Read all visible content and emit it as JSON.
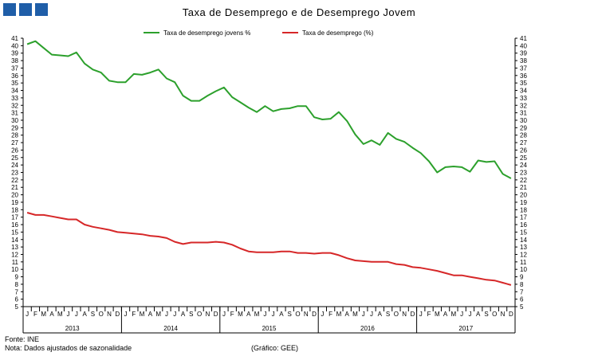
{
  "chart_data": {
    "type": "line",
    "title": "Taxa de Desemprego e de Desemprego Jovem",
    "xlabel": "",
    "ylabel": "",
    "ylim": [
      5,
      41
    ],
    "y_ticks": [
      5,
      6,
      7,
      8,
      9,
      10,
      11,
      12,
      13,
      14,
      15,
      16,
      17,
      18,
      19,
      20,
      21,
      22,
      23,
      24,
      25,
      26,
      27,
      28,
      29,
      30,
      31,
      32,
      33,
      34,
      35,
      36,
      37,
      38,
      39,
      40,
      41
    ],
    "month_labels": [
      "J",
      "F",
      "M",
      "A",
      "M",
      "J",
      "J",
      "A",
      "S",
      "O",
      "N",
      "D"
    ],
    "years": [
      "2013",
      "2014",
      "2015",
      "2016",
      "2017"
    ],
    "legend_position": "top-center",
    "series": [
      {
        "name": "Taxa de desemprego jovens %",
        "color": "#2ca02c",
        "values": [
          40.2,
          40.6,
          39.7,
          38.8,
          38.7,
          38.6,
          39.1,
          37.6,
          36.8,
          36.4,
          35.3,
          35.1,
          35.1,
          36.2,
          36.1,
          36.4,
          36.8,
          35.6,
          35.1,
          33.3,
          32.6,
          32.6,
          33.3,
          33.9,
          34.4,
          33.1,
          32.4,
          31.7,
          31.1,
          31.9,
          31.2,
          31.5,
          31.6,
          31.9,
          31.9,
          30.4,
          30.1,
          30.2,
          31.1,
          29.9,
          28.1,
          26.8,
          27.3,
          26.7,
          28.3,
          27.5,
          27.1,
          26.3,
          25.6,
          24.5,
          23.0,
          23.7,
          23.8,
          23.7,
          23.1,
          24.6,
          24.4,
          24.5,
          22.8,
          22.2
        ]
      },
      {
        "name": "Taxa de desemprego (%)",
        "color": "#d62728",
        "values": [
          17.6,
          17.3,
          17.3,
          17.1,
          16.9,
          16.7,
          16.7,
          16.0,
          15.7,
          15.5,
          15.3,
          15.0,
          14.9,
          14.8,
          14.7,
          14.5,
          14.4,
          14.2,
          13.7,
          13.4,
          13.6,
          13.6,
          13.6,
          13.7,
          13.6,
          13.3,
          12.8,
          12.4,
          12.3,
          12.3,
          12.3,
          12.4,
          12.4,
          12.2,
          12.2,
          12.1,
          12.2,
          12.2,
          11.9,
          11.5,
          11.2,
          11.1,
          11.0,
          11.0,
          11.0,
          10.7,
          10.6,
          10.3,
          10.2,
          10.0,
          9.8,
          9.5,
          9.2,
          9.2,
          9.0,
          8.8,
          8.6,
          8.5,
          8.2,
          7.9
        ]
      }
    ]
  },
  "footer": {
    "source": "Fonte: INE",
    "note": "Nota: Dados ajustados de sazonalidade",
    "credit": "(Gráfico: GEE)"
  }
}
